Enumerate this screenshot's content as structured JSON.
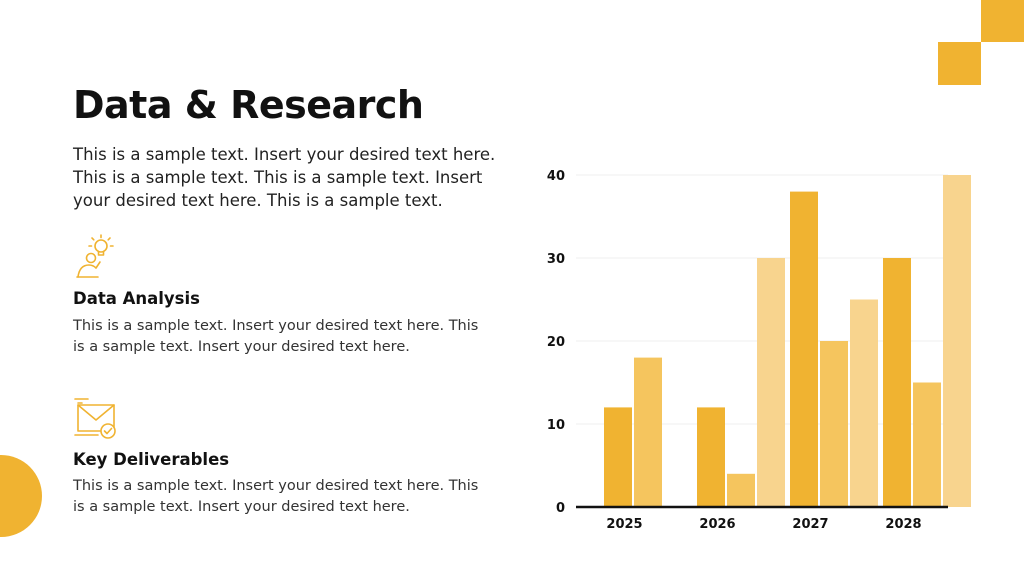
{
  "slide": {
    "title": "Data & Research",
    "intro": "This is a sample text. Insert your desired text here. This is a sample text. This is a sample text. Insert your desired text here. This is a sample text."
  },
  "features": [
    {
      "icon": "lightbulb-idea-icon",
      "title": "Data Analysis",
      "text": "This is a sample text. Insert your desired text here. This is a sample text. Insert your desired text here."
    },
    {
      "icon": "envelope-check-icon",
      "title": "Key Deliverables",
      "text": "This is a sample text. Insert your desired text here. This is a sample text. Insert your desired text here."
    }
  ],
  "colors": {
    "accent": "#F0B331",
    "series": [
      "#F0B331",
      "#F5C55E",
      "#F8D48E"
    ],
    "axis": "#111111",
    "grid": "#EFEFEF"
  },
  "chart_data": {
    "type": "bar",
    "categories": [
      "2025",
      "2026",
      "2027",
      "2028"
    ],
    "series": [
      {
        "values": [
          12,
          12,
          38,
          30
        ]
      },
      {
        "values": [
          18,
          4,
          20,
          15
        ]
      },
      {
        "values": [
          null,
          30,
          25,
          40
        ]
      }
    ],
    "ylim": [
      0,
      40
    ],
    "yticks": [
      0,
      10,
      20,
      30,
      40
    ],
    "grid": true,
    "legend": "none",
    "title": "",
    "xlabel": "",
    "ylabel": ""
  }
}
